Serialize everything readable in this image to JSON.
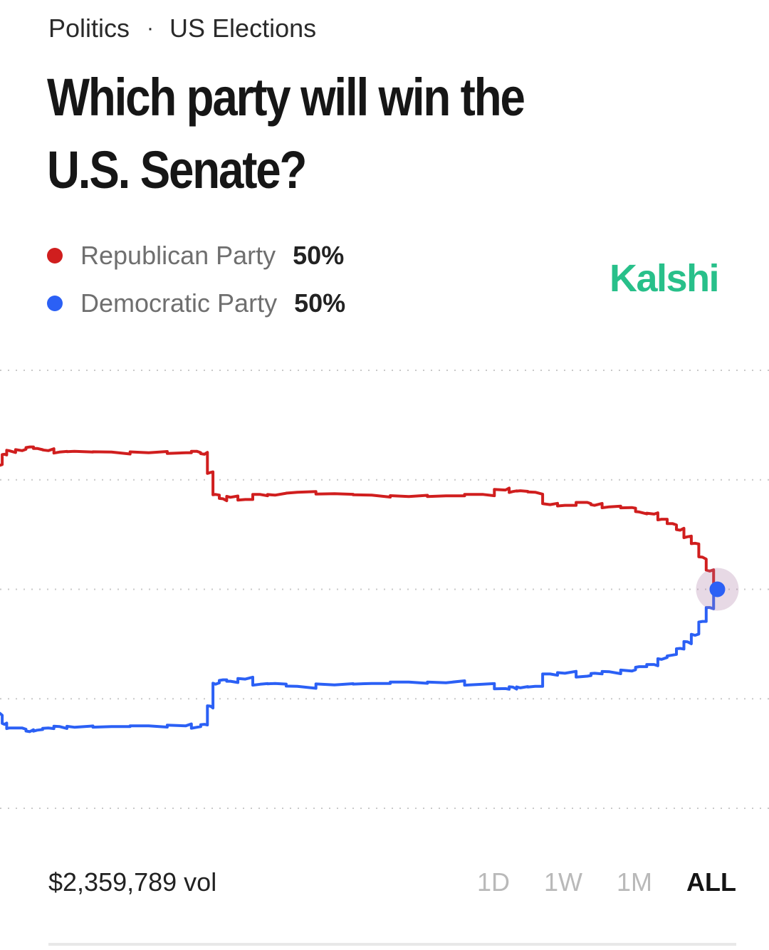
{
  "breadcrumb": {
    "category": "Politics",
    "separator": "·",
    "subcategory": "US Elections"
  },
  "title": "Which party will win the U.S. Senate?",
  "legend": [
    {
      "name": "Republican Party",
      "value": "50%",
      "color": "#d01e1e"
    },
    {
      "name": "Democratic Party",
      "value": "50%",
      "color": "#2b60f5"
    }
  ],
  "brand": "Kalshi",
  "volume": "$2,359,789 vol",
  "time_ranges": [
    {
      "label": "1D",
      "active": false
    },
    {
      "label": "1W",
      "active": false
    },
    {
      "label": "1M",
      "active": false
    },
    {
      "label": "ALL",
      "active": true
    }
  ],
  "chart_data": {
    "type": "line",
    "grid": true,
    "ylim": [
      20,
      80
    ],
    "x_range": [
      0,
      1
    ],
    "series": [
      {
        "name": "Republican Party",
        "color": "#d01e1e",
        "x": [
          0.0,
          0.006,
          0.012,
          0.03,
          0.04,
          0.05,
          0.065,
          0.08,
          0.1,
          0.15,
          0.2,
          0.25,
          0.265,
          0.275,
          0.283,
          0.29,
          0.3,
          0.31,
          0.33,
          0.35,
          0.37,
          0.4,
          0.45,
          0.5,
          0.55,
          0.6,
          0.65,
          0.68,
          0.69,
          0.7,
          0.72,
          0.74,
          0.76,
          0.79,
          0.8,
          0.82,
          0.85,
          0.86,
          0.88,
          0.89,
          0.905,
          0.915,
          0.925,
          0.935,
          0.945,
          0.955,
          0.965
        ],
        "y": [
          67,
          68.5,
          69,
          69,
          69.5,
          69.3,
          69,
          68.8,
          68.9,
          68.8,
          68.7,
          68.7,
          68.9,
          68.5,
          66,
          63,
          62.4,
          62.6,
          62.3,
          63,
          62.9,
          63.3,
          63.1,
          62.9,
          62.7,
          62.8,
          63,
          63.6,
          63.4,
          63.5,
          63.3,
          61.6,
          61.5,
          61.9,
          61.5,
          61.3,
          61.2,
          60.6,
          60.3,
          59.6,
          59,
          58.1,
          57.2,
          56.3,
          54.4,
          52.5,
          50
        ]
      },
      {
        "name": "Democratic Party",
        "color": "#2b60f5",
        "x": [
          0.0,
          0.006,
          0.012,
          0.03,
          0.04,
          0.05,
          0.065,
          0.08,
          0.1,
          0.15,
          0.2,
          0.25,
          0.265,
          0.275,
          0.283,
          0.29,
          0.3,
          0.31,
          0.33,
          0.35,
          0.37,
          0.4,
          0.45,
          0.5,
          0.55,
          0.6,
          0.65,
          0.68,
          0.69,
          0.7,
          0.72,
          0.74,
          0.76,
          0.79,
          0.8,
          0.82,
          0.85,
          0.86,
          0.88,
          0.89,
          0.905,
          0.915,
          0.925,
          0.935,
          0.945,
          0.955,
          0.965
        ],
        "y": [
          33,
          31.5,
          31,
          31,
          30.5,
          30.7,
          31,
          31.2,
          31.1,
          31.2,
          31.3,
          31.3,
          31.1,
          31.5,
          34,
          37,
          37.6,
          37.4,
          37.7,
          37,
          37.1,
          36.7,
          36.9,
          37.1,
          37.3,
          37.2,
          37,
          36.4,
          36.6,
          36.5,
          36.7,
          38.4,
          38.5,
          38.1,
          38.5,
          38.7,
          38.8,
          39.4,
          39.7,
          40.4,
          41,
          41.9,
          42.8,
          43.7,
          45.6,
          47.5,
          50
        ]
      }
    ]
  }
}
